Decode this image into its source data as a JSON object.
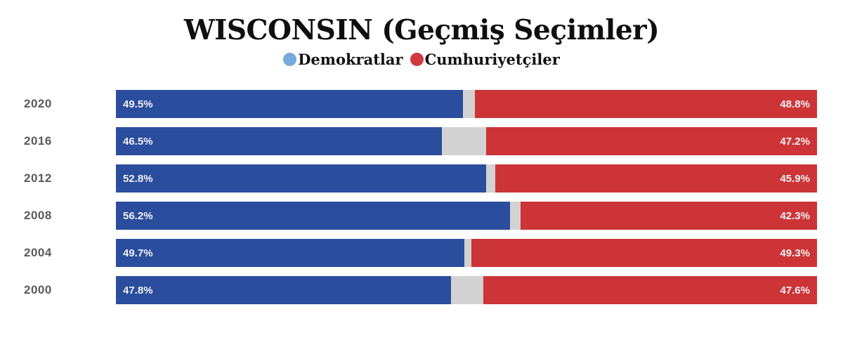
{
  "title": "WISCONSIN (Geçmiş Seçimler)",
  "legend": {
    "items": [
      {
        "label": "Demokratlar",
        "color": "#76aadb"
      },
      {
        "label": "Cumhuriyetçiler",
        "color": "#d2383f"
      }
    ]
  },
  "colors": {
    "dem_bar": "#2b4d9e",
    "rep_bar": "#cc3438",
    "other_bar": "#d2d2d2",
    "year_label": "#5a5a5a",
    "bar_label": "#f2f2f2"
  },
  "chart_data": {
    "type": "bar",
    "orientation": "horizontal-stacked",
    "title": "WISCONSIN (Geçmiş Seçimler)",
    "categories": [
      "2020",
      "2016",
      "2012",
      "2008",
      "2004",
      "2000"
    ],
    "series": [
      {
        "name": "Demokratlar",
        "color": "#2b4d9e",
        "values": [
          49.5,
          46.5,
          52.8,
          56.2,
          49.7,
          47.8
        ]
      },
      {
        "name": "Cumhuriyetçiler",
        "color": "#cc3438",
        "values": [
          48.8,
          47.2,
          45.9,
          42.3,
          49.3,
          47.6
        ]
      }
    ],
    "value_labels": {
      "dem": [
        "49.5%",
        "46.5%",
        "52.8%",
        "56.2%",
        "49.7%",
        "47.8%"
      ],
      "rep": [
        "48.8%",
        "47.2%",
        "45.9%",
        "42.3%",
        "49.3%",
        "47.6%"
      ]
    },
    "xlim": [
      0,
      100
    ],
    "grid": false,
    "legend_position": "top-center"
  }
}
